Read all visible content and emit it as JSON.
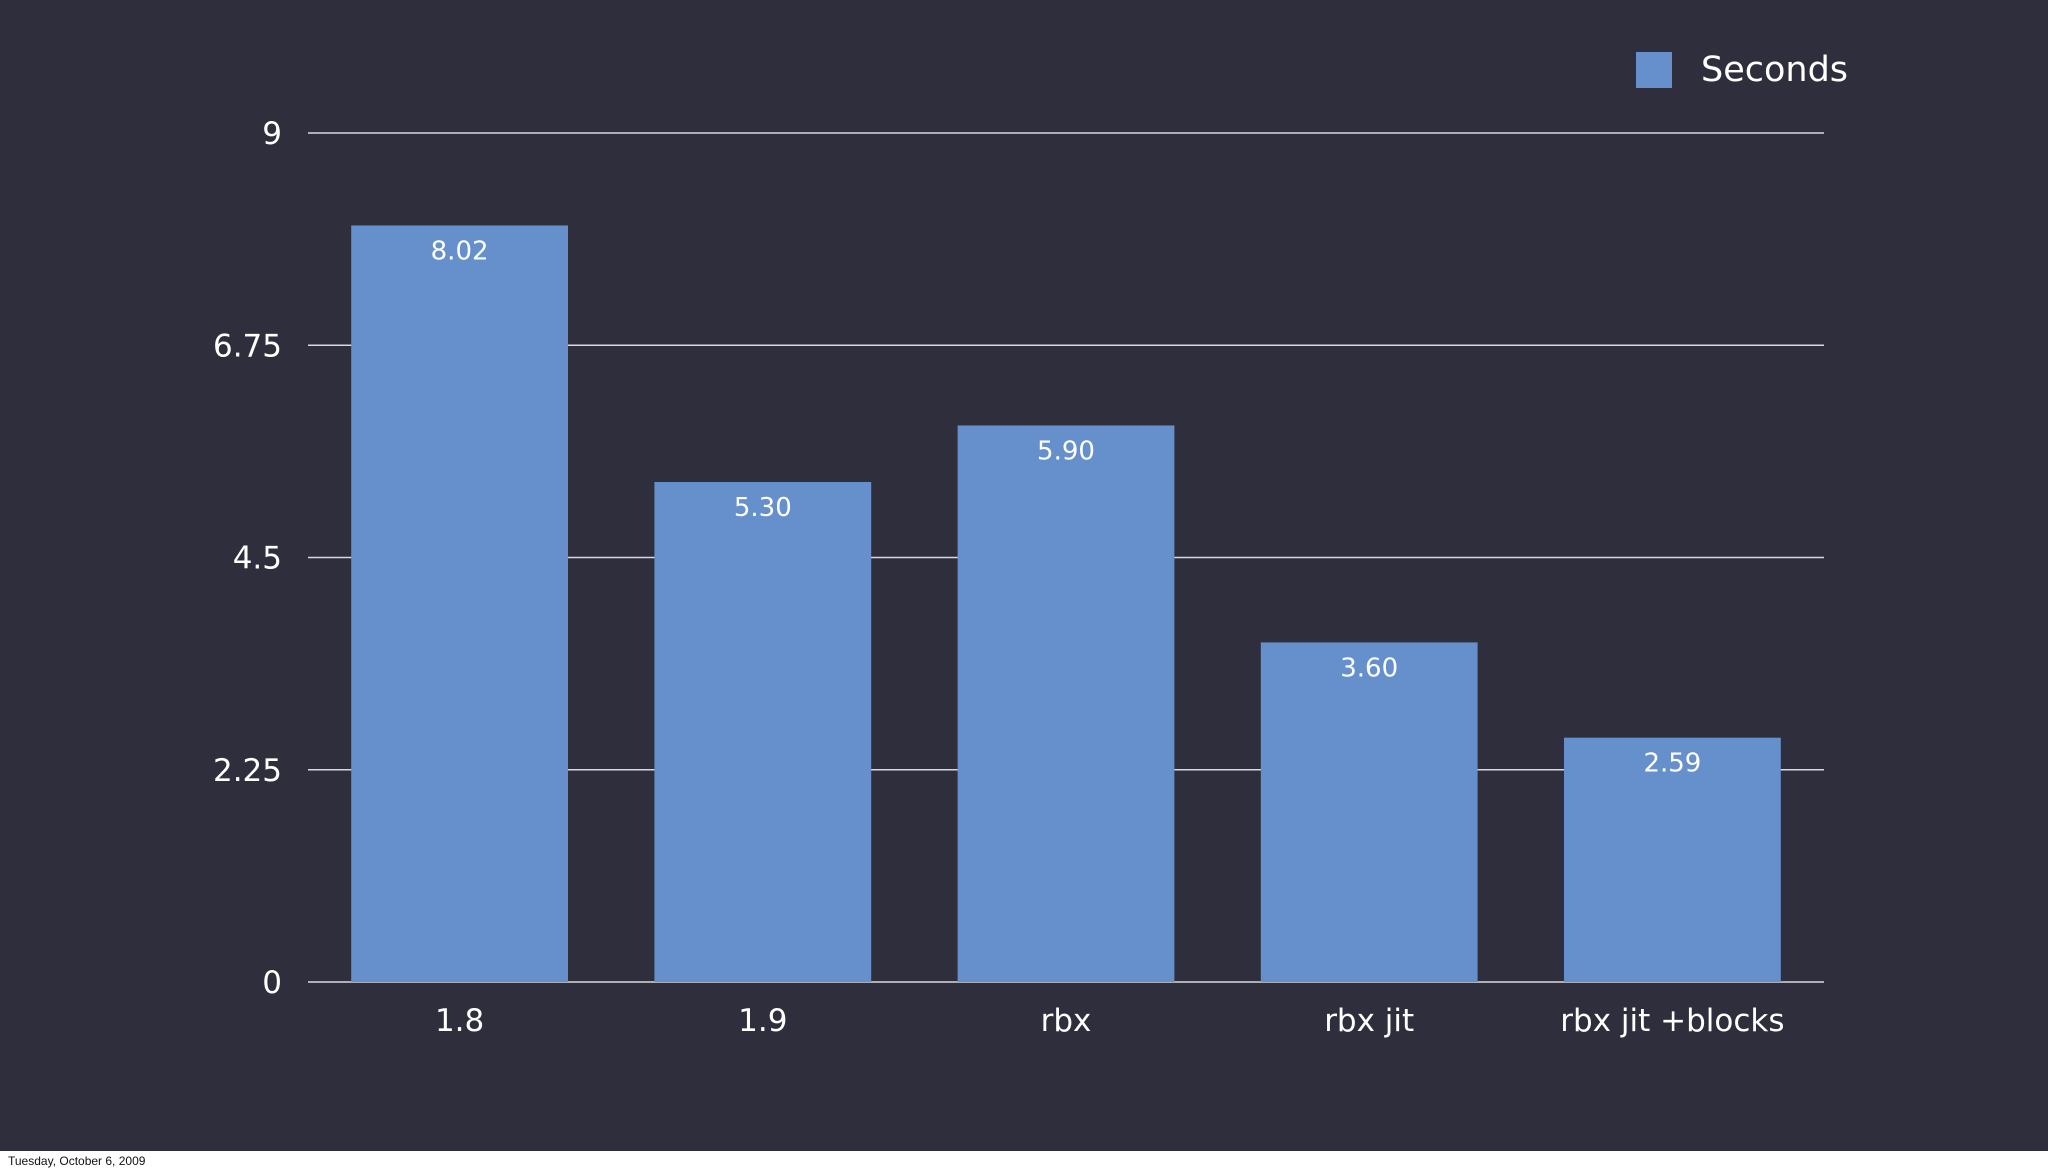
{
  "chart_data": {
    "type": "bar",
    "categories": [
      "1.8",
      "1.9",
      "rbx",
      "rbx jit",
      "rbx jit +blocks"
    ],
    "series": [
      {
        "name": "Seconds",
        "values": [
          8.02,
          5.3,
          5.9,
          3.6,
          2.59
        ],
        "value_labels": [
          "8.02",
          "5.30",
          "5.90",
          "3.60",
          "2.59"
        ],
        "color": "#6590cc"
      }
    ],
    "yticks": [
      "0",
      "2.25",
      "4.5",
      "6.75",
      "9"
    ],
    "ylim": [
      0,
      9
    ],
    "grid": true,
    "legend_position": "top-right"
  },
  "colors": {
    "background": "#2f2e3c",
    "gridline": "#d8d8de",
    "text": "#ffffff"
  },
  "footer": {
    "date": "Tuesday, October 6, 2009"
  }
}
